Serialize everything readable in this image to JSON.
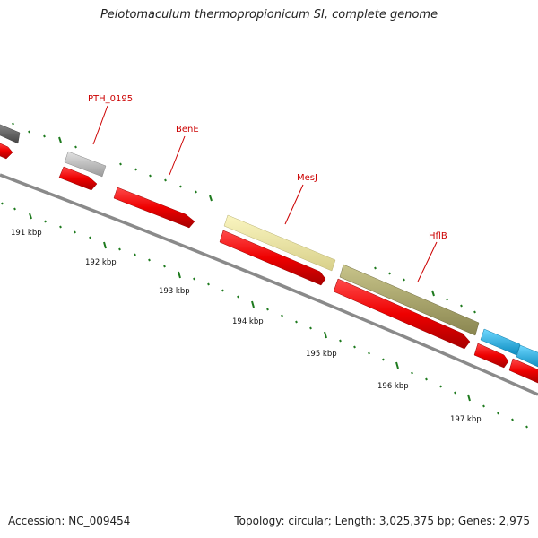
{
  "title": "Pelotomaculum thermopropionicum SI, complete genome",
  "footer": {
    "accession": "Accession: NC_009454",
    "topology": "Topology: circular; Length: 3,025,375 bp; Genes: 2,975"
  },
  "colors": {
    "label_red": "#cc0000",
    "tick_green": "#1e7a1e",
    "backbone": "#808080",
    "cds_red": "#ee0000",
    "gene_gray": "#bdbdbd",
    "gene_dark_gray": "#666666",
    "gene_khaki": "#eee8aa",
    "gene_olive": "#b0ac6c",
    "gene_cyan": "#19b2e6"
  },
  "gene_labels": [
    "PTH_0195",
    "BenE",
    "MesJ",
    "HflB"
  ],
  "tick_labels": [
    "191 kbp",
    "192 kbp",
    "193 kbp",
    "194 kbp",
    "195 kbp",
    "196 kbp",
    "197 kbp"
  ]
}
